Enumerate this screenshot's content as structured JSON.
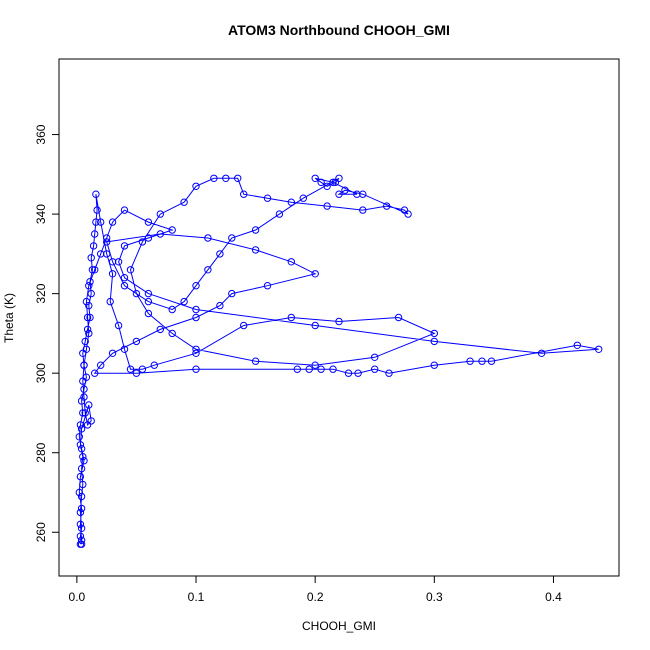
{
  "chart_data": {
    "type": "line",
    "title": "ATOM3 Northbound CHOOH_GMI",
    "xlabel": "CHOOH_GMI",
    "ylabel": "Theta (K)",
    "xlim": [
      -0.015,
      0.455
    ],
    "ylim": [
      249,
      379
    ],
    "x_ticks": [
      0.0,
      0.1,
      0.2,
      0.3,
      0.4
    ],
    "x_tick_labels": [
      "0.0",
      "0.1",
      "0.2",
      "0.3",
      "0.4"
    ],
    "y_ticks": [
      260,
      280,
      300,
      320,
      340,
      360
    ],
    "y_tick_labels": [
      "260",
      "280",
      "300",
      "320",
      "340",
      "360"
    ],
    "grid": false,
    "marker": "open-circle",
    "color": "#0000ff",
    "series": [
      {
        "values_note": "",
        "points": [
          [
            0.003,
            257
          ],
          [
            0.004,
            258
          ],
          [
            0.003,
            262
          ],
          [
            0.004,
            266
          ],
          [
            0.002,
            270
          ],
          [
            0.003,
            274
          ],
          [
            0.006,
            278
          ],
          [
            0.004,
            281
          ],
          [
            0.002,
            284
          ],
          [
            0.003,
            287
          ],
          [
            0.005,
            290
          ],
          [
            0.004,
            293
          ],
          [
            0.006,
            296
          ],
          [
            0.008,
            299
          ],
          [
            0.006,
            302
          ],
          [
            0.005,
            305
          ],
          [
            0.007,
            308
          ],
          [
            0.009,
            311
          ],
          [
            0.011,
            314
          ],
          [
            0.01,
            317
          ],
          [
            0.012,
            320
          ],
          [
            0.011,
            323
          ],
          [
            0.013,
            326
          ],
          [
            0.012,
            329
          ],
          [
            0.014,
            332
          ],
          [
            0.015,
            335
          ],
          [
            0.016,
            338
          ],
          [
            0.017,
            341
          ],
          [
            0.016,
            345
          ],
          [
            0.02,
            338
          ],
          [
            0.025,
            330
          ],
          [
            0.03,
            325
          ],
          [
            0.028,
            318
          ],
          [
            0.035,
            312
          ],
          [
            0.04,
            306
          ],
          [
            0.045,
            301
          ],
          [
            0.055,
            301
          ],
          [
            0.065,
            302
          ],
          [
            0.1,
            305
          ],
          [
            0.14,
            312
          ],
          [
            0.18,
            314
          ],
          [
            0.22,
            313
          ],
          [
            0.27,
            314
          ],
          [
            0.3,
            310
          ],
          [
            0.25,
            304
          ],
          [
            0.2,
            302
          ],
          [
            0.15,
            303
          ],
          [
            0.1,
            306
          ],
          [
            0.08,
            310
          ],
          [
            0.06,
            315
          ],
          [
            0.05,
            320
          ],
          [
            0.045,
            326
          ],
          [
            0.055,
            333
          ],
          [
            0.07,
            340
          ],
          [
            0.09,
            343
          ],
          [
            0.1,
            347
          ],
          [
            0.115,
            349
          ],
          [
            0.125,
            349
          ],
          [
            0.135,
            349
          ],
          [
            0.14,
            345
          ],
          [
            0.16,
            344
          ],
          [
            0.18,
            343
          ],
          [
            0.21,
            342
          ],
          [
            0.24,
            341
          ],
          [
            0.26,
            342
          ],
          [
            0.275,
            341
          ],
          [
            0.278,
            340
          ],
          [
            0.24,
            345
          ],
          [
            0.225,
            346
          ],
          [
            0.22,
            345
          ],
          [
            0.235,
            345
          ],
          [
            0.215,
            348
          ],
          [
            0.2,
            349
          ],
          [
            0.205,
            348
          ],
          [
            0.21,
            347
          ],
          [
            0.217,
            348
          ],
          [
            0.22,
            349
          ],
          [
            0.19,
            344
          ],
          [
            0.17,
            340
          ],
          [
            0.15,
            336
          ],
          [
            0.13,
            334
          ],
          [
            0.12,
            330
          ],
          [
            0.11,
            326
          ],
          [
            0.1,
            322
          ],
          [
            0.09,
            318
          ],
          [
            0.08,
            316
          ],
          [
            0.06,
            318
          ],
          [
            0.04,
            322
          ],
          [
            0.03,
            328
          ],
          [
            0.025,
            333
          ],
          [
            0.07,
            335
          ],
          [
            0.11,
            334
          ],
          [
            0.15,
            331
          ],
          [
            0.18,
            328
          ],
          [
            0.2,
            325
          ],
          [
            0.16,
            322
          ],
          [
            0.13,
            320
          ],
          [
            0.12,
            317
          ],
          [
            0.1,
            314
          ],
          [
            0.07,
            311
          ],
          [
            0.05,
            308
          ],
          [
            0.03,
            305
          ],
          [
            0.02,
            302
          ],
          [
            0.015,
            300
          ],
          [
            0.05,
            300
          ],
          [
            0.1,
            301
          ],
          [
            0.185,
            301
          ],
          [
            0.195,
            301
          ],
          [
            0.205,
            301
          ],
          [
            0.215,
            301
          ],
          [
            0.228,
            300
          ],
          [
            0.236,
            300
          ],
          [
            0.25,
            301
          ],
          [
            0.262,
            300
          ],
          [
            0.3,
            302
          ],
          [
            0.33,
            303
          ],
          [
            0.34,
            303
          ],
          [
            0.348,
            303
          ],
          [
            0.42,
            307
          ],
          [
            0.438,
            306
          ],
          [
            0.39,
            305
          ],
          [
            0.3,
            308
          ],
          [
            0.2,
            312
          ],
          [
            0.1,
            316
          ],
          [
            0.06,
            320
          ],
          [
            0.04,
            324
          ],
          [
            0.035,
            328
          ],
          [
            0.04,
            332
          ],
          [
            0.06,
            334
          ],
          [
            0.08,
            336
          ],
          [
            0.06,
            338
          ],
          [
            0.04,
            341
          ],
          [
            0.03,
            338
          ],
          [
            0.025,
            334
          ],
          [
            0.02,
            330
          ],
          [
            0.015,
            326
          ],
          [
            0.01,
            322
          ],
          [
            0.008,
            318
          ],
          [
            0.009,
            314
          ],
          [
            0.01,
            310
          ],
          [
            0.008,
            306
          ],
          [
            0.006,
            302
          ],
          [
            0.005,
            298
          ],
          [
            0.006,
            294
          ],
          [
            0.007,
            290
          ],
          [
            0.009,
            287
          ],
          [
            0.012,
            288
          ],
          [
            0.01,
            292
          ],
          [
            0.004,
            286
          ],
          [
            0.003,
            282
          ],
          [
            0.005,
            279
          ],
          [
            0.004,
            276
          ],
          [
            0.005,
            272
          ],
          [
            0.004,
            269
          ],
          [
            0.003,
            265
          ],
          [
            0.004,
            261
          ],
          [
            0.003,
            259
          ],
          [
            0.004,
            257
          ]
        ]
      }
    ]
  }
}
